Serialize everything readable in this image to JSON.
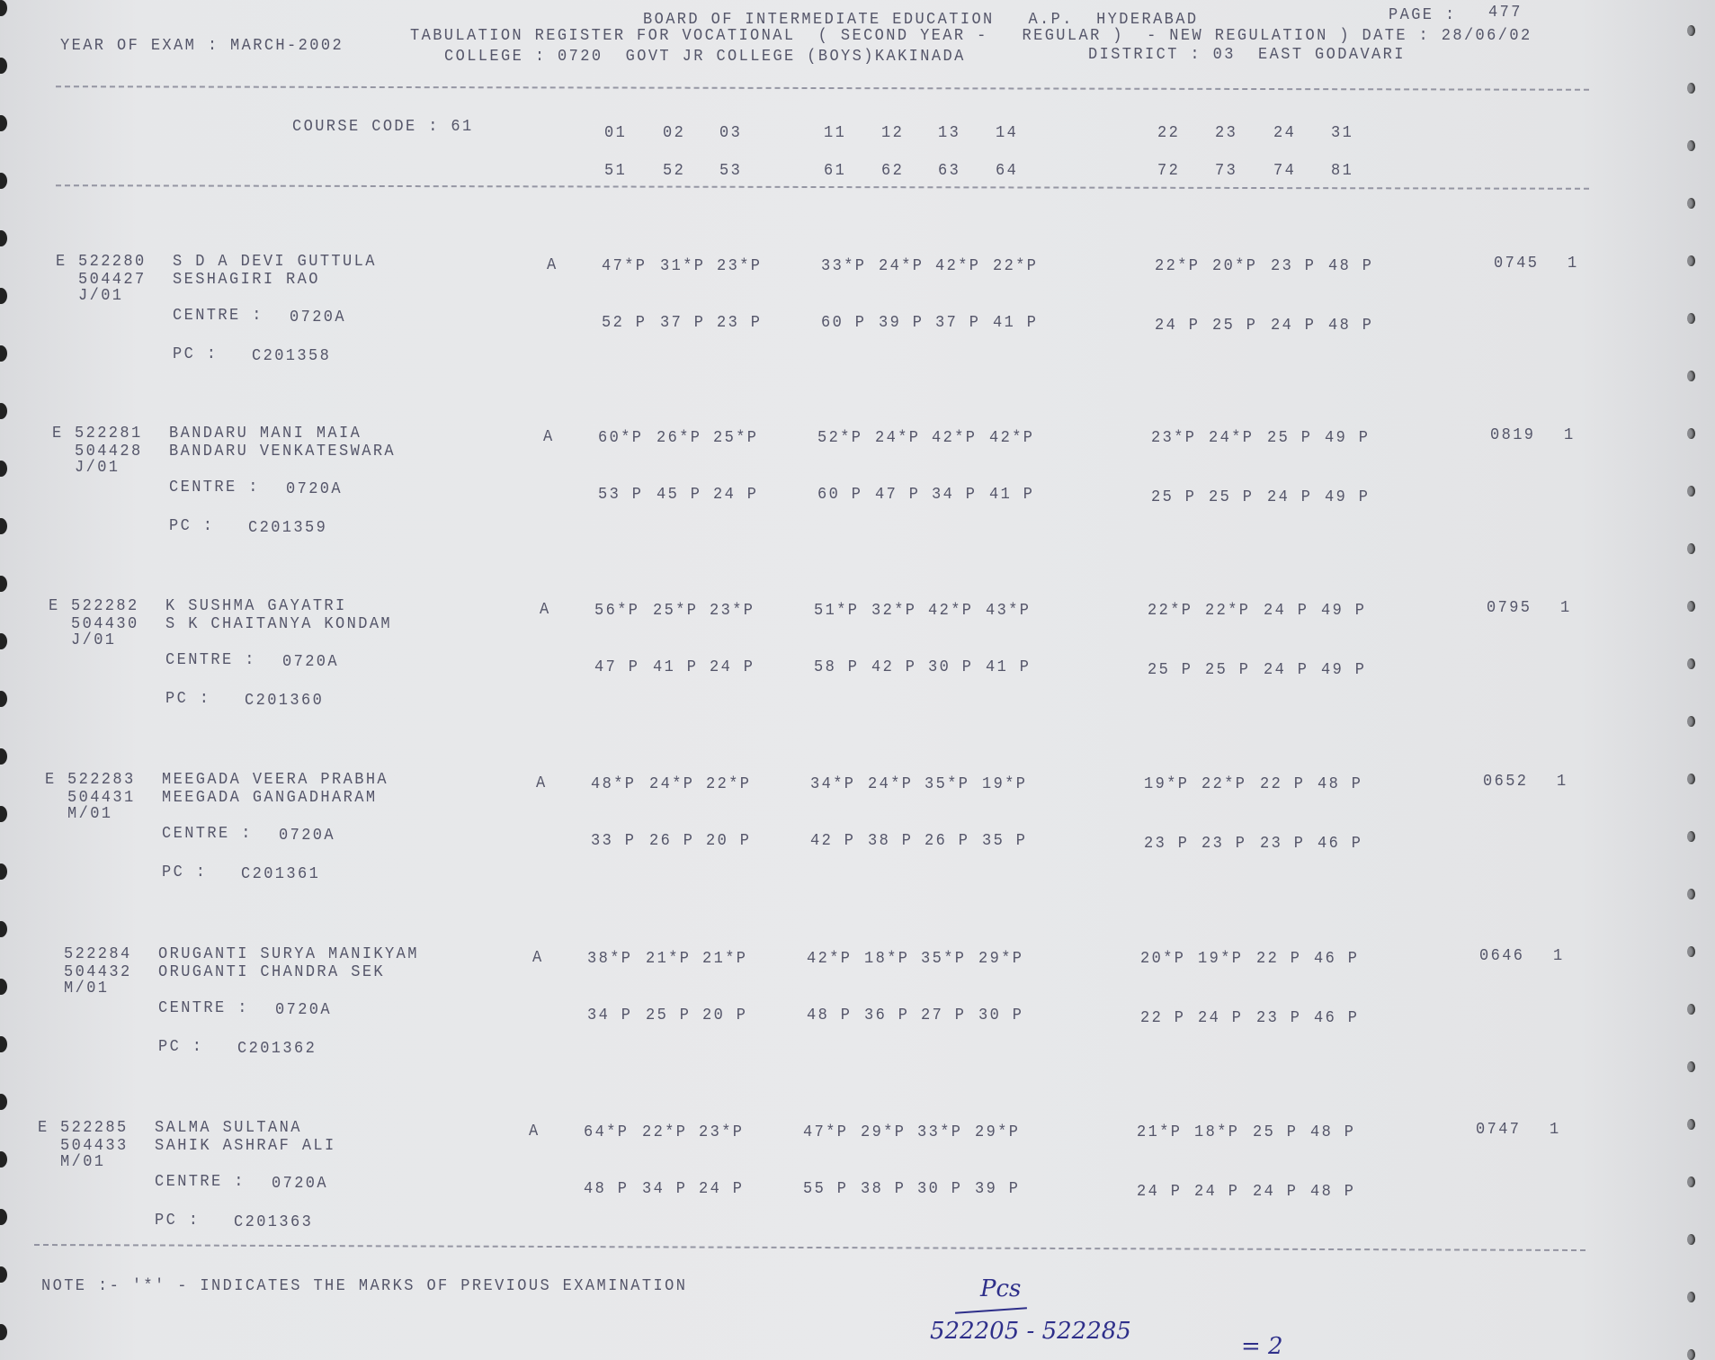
{
  "header": {
    "board": "BOARD OF INTERMEDIATE EDUCATION   A.P.  HYDERABAD",
    "page_label": "PAGE :",
    "page": "477",
    "title": "TABULATION REGISTER FOR VOCATIONAL  ( SECOND YEAR -   REGULAR )  - NEW REGULATION ) DATE : 28/06/02",
    "year_of_exam": "YEAR OF EXAM : MARCH-2002",
    "college": "COLLEGE : 0720  GOVT JR COLLEGE (BOYS)KAKINADA",
    "district": "DISTRICT : 03  EAST GODAVARI"
  },
  "course": {
    "label": "COURSE CODE : 61",
    "codes_row1": [
      "01",
      "02",
      "03",
      "11",
      "12",
      "13",
      "14",
      "22",
      "23",
      "24",
      "31"
    ],
    "codes_row2": [
      "51",
      "52",
      "53",
      "61",
      "62",
      "63",
      "64",
      "72",
      "73",
      "74",
      "81"
    ]
  },
  "labels": {
    "centre": "CENTRE :",
    "pc": "PC :"
  },
  "records": [
    {
      "flag": "E",
      "roll": "522280",
      "id": "504427",
      "name": "S D A DEVI GUTTULA",
      "father": "SESHAGIRI RAO",
      "group": "J/01",
      "centre": "0720A",
      "pc": "C201358",
      "result": "A",
      "marks1": [
        "47*P",
        "31*P",
        "23*P",
        "33*P",
        "24*P",
        "42*P",
        "22*P",
        "22*P",
        "20*P",
        "23 P",
        "48 P"
      ],
      "marks2": [
        "52 P",
        "37 P",
        "23 P",
        "60 P",
        "39 P",
        "37 P",
        "41 P",
        "24 P",
        "25 P",
        "24 P",
        "48 P"
      ],
      "total": "0745",
      "count": "1"
    },
    {
      "flag": "E",
      "roll": "522281",
      "id": "504428",
      "name": "BANDARU MANI MAIA",
      "father": "BANDARU VENKATESWARA",
      "group": "J/01",
      "centre": "0720A",
      "pc": "C201359",
      "result": "A",
      "marks1": [
        "60*P",
        "26*P",
        "25*P",
        "52*P",
        "24*P",
        "42*P",
        "42*P",
        "23*P",
        "24*P",
        "25 P",
        "49 P"
      ],
      "marks2": [
        "53 P",
        "45 P",
        "24 P",
        "60 P",
        "47 P",
        "34 P",
        "41 P",
        "25 P",
        "25 P",
        "24 P",
        "49 P"
      ],
      "total": "0819",
      "count": "1"
    },
    {
      "flag": "E",
      "roll": "522282",
      "id": "504430",
      "name": "K SUSHMA GAYATRI",
      "father": "S K CHAITANYA KONDAM",
      "group": "J/01",
      "centre": "0720A",
      "pc": "C201360",
      "result": "A",
      "marks1": [
        "56*P",
        "25*P",
        "23*P",
        "51*P",
        "32*P",
        "42*P",
        "43*P",
        "22*P",
        "22*P",
        "24 P",
        "49 P"
      ],
      "marks2": [
        "47 P",
        "41 P",
        "24 P",
        "58 P",
        "42 P",
        "30 P",
        "41 P",
        "25 P",
        "25 P",
        "24 P",
        "49 P"
      ],
      "total": "0795",
      "count": "1"
    },
    {
      "flag": "E",
      "roll": "522283",
      "id": "504431",
      "name": "MEEGADA VEERA PRABHA",
      "father": "MEEGADA GANGADHARAM",
      "group": "M/01",
      "centre": "0720A",
      "pc": "C201361",
      "result": "A",
      "marks1": [
        "48*P",
        "24*P",
        "22*P",
        "34*P",
        "24*P",
        "35*P",
        "19*P",
        "19*P",
        "22*P",
        "22 P",
        "48 P"
      ],
      "marks2": [
        "33 P",
        "26 P",
        "20 P",
        "42 P",
        "38 P",
        "26 P",
        "35 P",
        "23 P",
        "23 P",
        "23 P",
        "46 P"
      ],
      "total": "0652",
      "count": "1"
    },
    {
      "flag": "",
      "roll": "522284",
      "id": "504432",
      "name": "ORUGANTI SURYA MANIKYAM",
      "father": "ORUGANTI CHANDRA SEK",
      "group": "M/01",
      "centre": "0720A",
      "pc": "C201362",
      "result": "A",
      "marks1": [
        "38*P",
        "21*P",
        "21*P",
        "42*P",
        "18*P",
        "35*P",
        "29*P",
        "20*P",
        "19*P",
        "22 P",
        "46 P"
      ],
      "marks2": [
        "34 P",
        "25 P",
        "20 P",
        "48 P",
        "36 P",
        "27 P",
        "30 P",
        "22 P",
        "24 P",
        "23 P",
        "46 P"
      ],
      "total": "0646",
      "count": "1"
    },
    {
      "flag": "E",
      "roll": "522285",
      "id": "504433",
      "name": "SALMA SULTANA",
      "father": "SAHIK ASHRAF ALI",
      "group": "M/01",
      "centre": "0720A",
      "pc": "C201363",
      "result": "A",
      "marks1": [
        "64*P",
        "22*P",
        "23*P",
        "47*P",
        "29*P",
        "33*P",
        "29*P",
        "21*P",
        "18*P",
        "25 P",
        "48 P"
      ],
      "marks2": [
        "48 P",
        "34 P",
        "24 P",
        "55 P",
        "38 P",
        "30 P",
        "39 P",
        "24 P",
        "24 P",
        "24 P",
        "48 P"
      ],
      "total": "0747",
      "count": "1"
    }
  ],
  "note": "NOTE :- '*' - INDICATES THE MARKS OF PREVIOUS EXAMINATION",
  "handwritten": {
    "pcs": "Pcs",
    "range": "522205 - 522285",
    "eq": "= 2"
  }
}
